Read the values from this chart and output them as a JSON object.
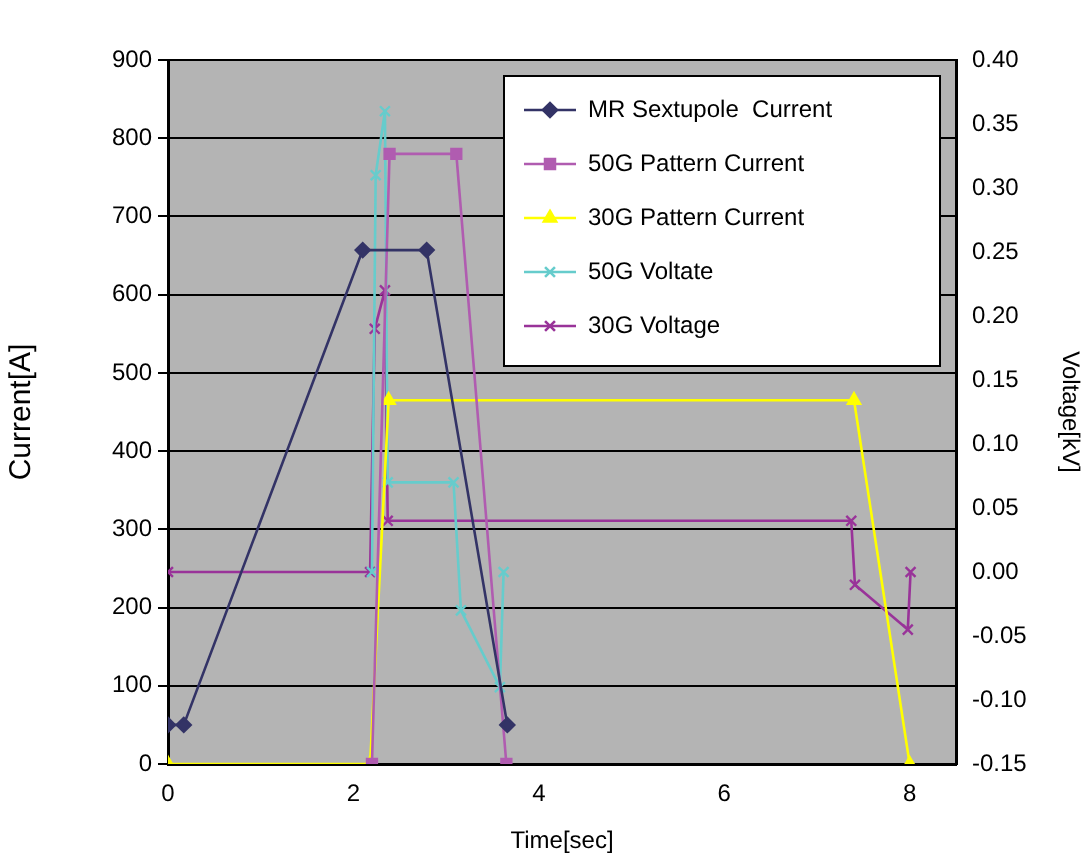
{
  "chart_data": {
    "type": "line",
    "xlabel": "Time[sec]",
    "ylabel": "Current[A]",
    "y2label": "Voltage[kV]",
    "xlim": [
      0,
      8.5
    ],
    "xticks": [
      0,
      2,
      4,
      6,
      8
    ],
    "ylim": [
      0,
      900
    ],
    "yticks": [
      0,
      100,
      200,
      300,
      400,
      500,
      600,
      700,
      800,
      900
    ],
    "y2lim": [
      -0.15,
      0.4
    ],
    "y2ticks": [
      {
        "value": -0.15,
        "label": "-0.15"
      },
      {
        "value": -0.1,
        "label": "-0.10"
      },
      {
        "value": -0.05,
        "label": "-0.05"
      },
      {
        "value": 0,
        "label": "0.00"
      },
      {
        "value": 0.05,
        "label": "0.05"
      },
      {
        "value": 0.1,
        "label": "0.10"
      },
      {
        "value": 0.15,
        "label": "0.15"
      },
      {
        "value": 0.2,
        "label": "0.20"
      },
      {
        "value": 0.25,
        "label": "0.25"
      },
      {
        "value": 0.3,
        "label": "0.30"
      },
      {
        "value": 0.35,
        "label": "0.35"
      },
      {
        "value": 0.4,
        "label": "0.40"
      }
    ],
    "grid": "y",
    "legend": "top right",
    "line_style": "solid",
    "series": [
      {
        "name": "MR Sextupole  Current",
        "color": "#333366",
        "marker": "diamond",
        "x": [
          0,
          0.17,
          2.1,
          2.79,
          3.66
        ],
        "values": [
          50,
          50,
          657,
          657,
          50
        ]
      },
      {
        "name": "50G Pattern Current",
        "color": "#b05cb0",
        "marker": "square",
        "x": [
          2.2,
          2.39,
          3.11,
          3.65
        ],
        "values": [
          0,
          780,
          780,
          0
        ]
      },
      {
        "name": "30G Pattern Current",
        "color": "#ffff00",
        "marker": "triangle",
        "x": [
          0,
          2.18,
          2.38,
          7.4,
          8.0
        ],
        "values": [
          0,
          0,
          465,
          465,
          0
        ]
      },
      {
        "name": "50G Voltate",
        "color": "#66cccc",
        "marker": "cross",
        "axis": "y2",
        "x": [
          2.2,
          2.24,
          2.34,
          2.37,
          3.08,
          3.16,
          3.58,
          3.62
        ],
        "values": [
          0,
          0.31,
          0.36,
          0.07,
          0.07,
          -0.03,
          -0.09,
          0
        ]
      },
      {
        "name": "30G Voltage",
        "color": "#993399",
        "marker": "cross",
        "axis": "y2",
        "x": [
          0,
          2.18,
          2.23,
          2.34,
          2.37,
          7.37,
          7.41,
          7.98,
          8.01
        ],
        "values": [
          0,
          0,
          0.19,
          0.22,
          0.04,
          0.04,
          -0.01,
          -0.045,
          0
        ]
      }
    ]
  }
}
